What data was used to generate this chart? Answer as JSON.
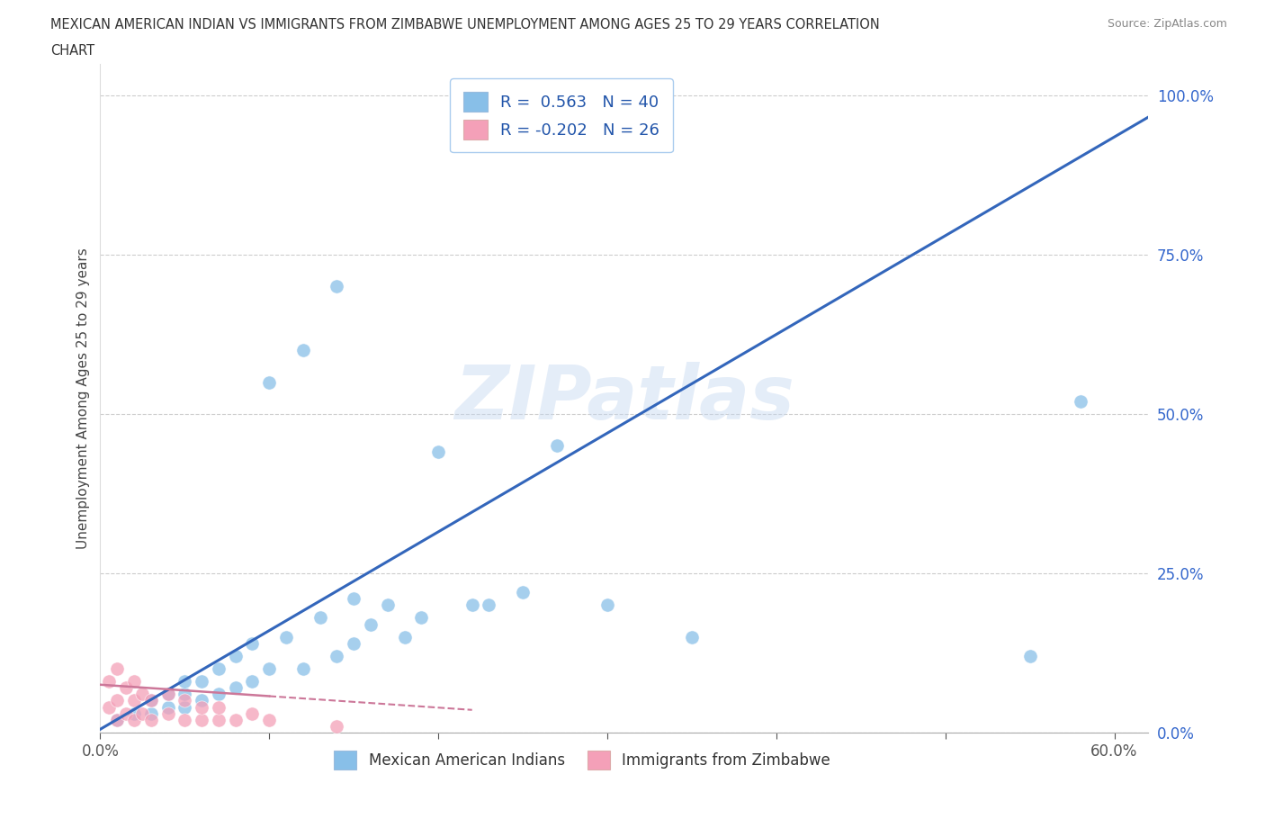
{
  "title_line1": "MEXICAN AMERICAN INDIAN VS IMMIGRANTS FROM ZIMBABWE UNEMPLOYMENT AMONG AGES 25 TO 29 YEARS CORRELATION",
  "title_line2": "CHART",
  "source_text": "Source: ZipAtlas.com",
  "ylabel": "Unemployment Among Ages 25 to 29 years",
  "xlim": [
    0.0,
    0.62
  ],
  "ylim": [
    0.0,
    1.05
  ],
  "xtick_positions": [
    0.0,
    0.1,
    0.2,
    0.3,
    0.4,
    0.5,
    0.6
  ],
  "xticklabels": [
    "0.0%",
    "",
    "",
    "",
    "",
    "",
    "60.0%"
  ],
  "ytick_positions": [
    0.0,
    0.25,
    0.5,
    0.75,
    1.0
  ],
  "yticklabels": [
    "0.0%",
    "25.0%",
    "50.0%",
    "75.0%",
    "100.0%"
  ],
  "blue_R": 0.563,
  "blue_N": 40,
  "pink_R": -0.202,
  "pink_N": 26,
  "blue_color": "#88bfe8",
  "pink_color": "#f4a0b8",
  "blue_trend_color": "#3366bb",
  "pink_trend_color": "#cc7799",
  "watermark_text": "ZIPatlas",
  "legend_label_blue": "Mexican American Indians",
  "legend_label_pink": "Immigrants from Zimbabwe",
  "blue_trend_slope": 1.55,
  "blue_trend_intercept": 0.005,
  "pink_trend_slope": -0.18,
  "pink_trend_intercept": 0.075,
  "blue_scatter_x": [
    0.01,
    0.02,
    0.03,
    0.03,
    0.04,
    0.04,
    0.05,
    0.05,
    0.05,
    0.06,
    0.06,
    0.07,
    0.07,
    0.08,
    0.08,
    0.09,
    0.09,
    0.1,
    0.1,
    0.11,
    0.12,
    0.12,
    0.13,
    0.14,
    0.14,
    0.15,
    0.15,
    0.16,
    0.17,
    0.18,
    0.19,
    0.2,
    0.22,
    0.23,
    0.25,
    0.27,
    0.3,
    0.35,
    0.55,
    0.58
  ],
  "blue_scatter_y": [
    0.02,
    0.03,
    0.03,
    0.05,
    0.04,
    0.06,
    0.04,
    0.06,
    0.08,
    0.05,
    0.08,
    0.06,
    0.1,
    0.07,
    0.12,
    0.08,
    0.14,
    0.1,
    0.55,
    0.15,
    0.1,
    0.6,
    0.18,
    0.12,
    0.7,
    0.14,
    0.21,
    0.17,
    0.2,
    0.15,
    0.18,
    0.44,
    0.2,
    0.2,
    0.22,
    0.45,
    0.2,
    0.15,
    0.12,
    0.52
  ],
  "pink_scatter_x": [
    0.005,
    0.005,
    0.01,
    0.01,
    0.01,
    0.015,
    0.015,
    0.02,
    0.02,
    0.02,
    0.025,
    0.025,
    0.03,
    0.03,
    0.04,
    0.04,
    0.05,
    0.05,
    0.06,
    0.06,
    0.07,
    0.07,
    0.08,
    0.09,
    0.1,
    0.14
  ],
  "pink_scatter_y": [
    0.04,
    0.08,
    0.02,
    0.05,
    0.1,
    0.03,
    0.07,
    0.02,
    0.05,
    0.08,
    0.03,
    0.06,
    0.02,
    0.05,
    0.03,
    0.06,
    0.02,
    0.05,
    0.02,
    0.04,
    0.02,
    0.04,
    0.02,
    0.03,
    0.02,
    0.01
  ]
}
